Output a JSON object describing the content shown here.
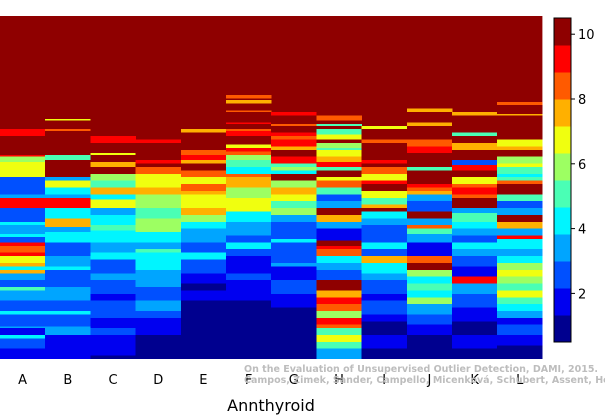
{
  "chart_data": {
    "type": "heatmap",
    "xlabel": "Annthyroid",
    "categories": [
      "A",
      "B",
      "C",
      "D",
      "E",
      "F",
      "G",
      "H",
      "I",
      "J",
      "K",
      "L"
    ],
    "colorbar": {
      "min": 0.5,
      "max": 10.5,
      "ticks": [
        "2",
        "4",
        "6",
        "8",
        "10"
      ],
      "tick_values": [
        2,
        4,
        6,
        8,
        10
      ],
      "levels": [
        "#00008F",
        "#0000F0",
        "#0050FF",
        "#00A5FF",
        "#00F5FF",
        "#4AFFB5",
        "#9DFF62",
        "#F0FF0F",
        "#FFB000",
        "#FF5A00",
        "#FF0000",
        "#8F0000"
      ]
    },
    "background_value": 11,
    "stripes": [
      [
        [
          0.33,
          10
        ],
        [
          0.35,
          11
        ],
        [
          0.405,
          10
        ],
        [
          0.41,
          6
        ],
        [
          0.425,
          7
        ],
        [
          0.47,
          2
        ],
        [
          0.52,
          3
        ],
        [
          0.53,
          10
        ],
        [
          0.56,
          2
        ],
        [
          0.6,
          4
        ],
        [
          0.61,
          3
        ],
        [
          0.635,
          4
        ],
        [
          0.645,
          2
        ],
        [
          0.66,
          10
        ],
        [
          0.67,
          9
        ],
        [
          0.69,
          10
        ],
        [
          0.7,
          7
        ],
        [
          0.72,
          8
        ],
        [
          0.73,
          4
        ],
        [
          0.74,
          8
        ],
        [
          0.75,
          3
        ],
        [
          0.77,
          2
        ],
        [
          0.79,
          5
        ],
        [
          0.8,
          3
        ],
        [
          0.83,
          2
        ],
        [
          0.86,
          4
        ],
        [
          0.87,
          2
        ],
        [
          0.905,
          3
        ],
        [
          0.91,
          1
        ],
        [
          0.93,
          4
        ],
        [
          0.94,
          2
        ],
        [
          0.97,
          1
        ]
      ],
      [
        [
          0.3,
          7
        ],
        [
          0.305,
          11
        ],
        [
          0.33,
          9
        ],
        [
          0.335,
          11
        ],
        [
          0.405,
          5
        ],
        [
          0.42,
          11
        ],
        [
          0.47,
          3
        ],
        [
          0.48,
          7
        ],
        [
          0.5,
          4
        ],
        [
          0.52,
          3
        ],
        [
          0.53,
          10
        ],
        [
          0.56,
          4
        ],
        [
          0.59,
          8
        ],
        [
          0.615,
          3
        ],
        [
          0.63,
          4
        ],
        [
          0.66,
          2
        ],
        [
          0.7,
          3
        ],
        [
          0.73,
          4
        ],
        [
          0.74,
          2
        ],
        [
          0.79,
          3
        ],
        [
          0.83,
          2
        ],
        [
          0.86,
          4
        ],
        [
          0.87,
          2
        ],
        [
          0.905,
          3
        ],
        [
          0.93,
          1
        ]
      ],
      [
        [
          0.35,
          10
        ],
        [
          0.37,
          11
        ],
        [
          0.4,
          7
        ],
        [
          0.405,
          11
        ],
        [
          0.425,
          8
        ],
        [
          0.44,
          11
        ],
        [
          0.46,
          6
        ],
        [
          0.48,
          5
        ],
        [
          0.5,
          8
        ],
        [
          0.52,
          4
        ],
        [
          0.535,
          7
        ],
        [
          0.56,
          3
        ],
        [
          0.58,
          4
        ],
        [
          0.61,
          5
        ],
        [
          0.625,
          4
        ],
        [
          0.66,
          3
        ],
        [
          0.69,
          4
        ],
        [
          0.71,
          2
        ],
        [
          0.75,
          3
        ],
        [
          0.77,
          2
        ],
        [
          0.81,
          1
        ],
        [
          0.83,
          2
        ],
        [
          0.88,
          1
        ],
        [
          0.91,
          2
        ],
        [
          0.93,
          1
        ],
        [
          0.99,
          0
        ]
      ],
      [
        [
          0.36,
          10
        ],
        [
          0.37,
          11
        ],
        [
          0.42,
          10
        ],
        [
          0.43,
          11
        ],
        [
          0.44,
          9
        ],
        [
          0.46,
          7
        ],
        [
          0.5,
          8
        ],
        [
          0.52,
          6
        ],
        [
          0.56,
          5
        ],
        [
          0.59,
          6
        ],
        [
          0.63,
          4
        ],
        [
          0.66,
          3
        ],
        [
          0.68,
          5
        ],
        [
          0.69,
          4
        ],
        [
          0.74,
          3
        ],
        [
          0.79,
          2
        ],
        [
          0.83,
          3
        ],
        [
          0.86,
          2
        ],
        [
          0.88,
          1
        ],
        [
          0.93,
          0
        ]
      ],
      [
        [
          0.33,
          8
        ],
        [
          0.34,
          11
        ],
        [
          0.39,
          9
        ],
        [
          0.405,
          10
        ],
        [
          0.42,
          8
        ],
        [
          0.43,
          11
        ],
        [
          0.45,
          9
        ],
        [
          0.47,
          7
        ],
        [
          0.49,
          9
        ],
        [
          0.51,
          8
        ],
        [
          0.52,
          7
        ],
        [
          0.56,
          8
        ],
        [
          0.58,
          6
        ],
        [
          0.6,
          4
        ],
        [
          0.62,
          3
        ],
        [
          0.64,
          3
        ],
        [
          0.66,
          2
        ],
        [
          0.69,
          4
        ],
        [
          0.71,
          2
        ],
        [
          0.75,
          1
        ],
        [
          0.78,
          0
        ],
        [
          0.8,
          1
        ],
        [
          0.83,
          0
        ]
      ],
      [
        [
          0.23,
          9
        ],
        [
          0.24,
          11
        ],
        [
          0.245,
          8
        ],
        [
          0.255,
          11
        ],
        [
          0.275,
          9
        ],
        [
          0.28,
          11
        ],
        [
          0.31,
          10
        ],
        [
          0.315,
          11
        ],
        [
          0.33,
          9
        ],
        [
          0.335,
          10
        ],
        [
          0.35,
          11
        ],
        [
          0.375,
          7
        ],
        [
          0.385,
          10
        ],
        [
          0.395,
          9
        ],
        [
          0.405,
          6
        ],
        [
          0.42,
          5
        ],
        [
          0.44,
          4
        ],
        [
          0.46,
          9
        ],
        [
          0.47,
          8
        ],
        [
          0.5,
          6
        ],
        [
          0.53,
          7
        ],
        [
          0.57,
          4
        ],
        [
          0.6,
          3
        ],
        [
          0.64,
          2
        ],
        [
          0.66,
          4
        ],
        [
          0.68,
          2
        ],
        [
          0.7,
          1
        ],
        [
          0.75,
          2
        ],
        [
          0.77,
          1
        ],
        [
          0.83,
          0
        ]
      ],
      [
        [
          0.28,
          10
        ],
        [
          0.29,
          11
        ],
        [
          0.315,
          9
        ],
        [
          0.32,
          11
        ],
        [
          0.34,
          10
        ],
        [
          0.35,
          9
        ],
        [
          0.36,
          10
        ],
        [
          0.38,
          8
        ],
        [
          0.39,
          11
        ],
        [
          0.41,
          10
        ],
        [
          0.43,
          5
        ],
        [
          0.44,
          6
        ],
        [
          0.45,
          4
        ],
        [
          0.46,
          11
        ],
        [
          0.48,
          6
        ],
        [
          0.5,
          8
        ],
        [
          0.52,
          7
        ],
        [
          0.54,
          5
        ],
        [
          0.56,
          6
        ],
        [
          0.58,
          3
        ],
        [
          0.6,
          2
        ],
        [
          0.65,
          4
        ],
        [
          0.66,
          2
        ],
        [
          0.72,
          3
        ],
        [
          0.73,
          1
        ],
        [
          0.77,
          2
        ],
        [
          0.81,
          1
        ],
        [
          0.85,
          0
        ]
      ],
      [
        [
          0.29,
          9
        ],
        [
          0.305,
          11
        ],
        [
          0.315,
          5
        ],
        [
          0.32,
          11
        ],
        [
          0.33,
          5
        ],
        [
          0.345,
          7
        ],
        [
          0.36,
          11
        ],
        [
          0.37,
          6
        ],
        [
          0.385,
          5
        ],
        [
          0.39,
          7
        ],
        [
          0.41,
          8
        ],
        [
          0.425,
          10
        ],
        [
          0.44,
          5
        ],
        [
          0.45,
          11
        ],
        [
          0.47,
          7
        ],
        [
          0.48,
          9
        ],
        [
          0.5,
          5
        ],
        [
          0.52,
          2
        ],
        [
          0.54,
          3
        ],
        [
          0.56,
          11
        ],
        [
          0.58,
          8
        ],
        [
          0.6,
          3
        ],
        [
          0.62,
          1
        ],
        [
          0.655,
          11
        ],
        [
          0.67,
          10
        ],
        [
          0.68,
          9
        ],
        [
          0.7,
          4
        ],
        [
          0.72,
          3
        ],
        [
          0.74,
          2
        ],
        [
          0.77,
          11
        ],
        [
          0.8,
          8
        ],
        [
          0.82,
          10
        ],
        [
          0.84,
          9
        ],
        [
          0.86,
          6
        ],
        [
          0.88,
          10
        ],
        [
          0.9,
          9
        ],
        [
          0.91,
          5
        ],
        [
          0.93,
          7
        ],
        [
          0.95,
          5
        ],
        [
          0.97,
          3
        ]
      ],
      [
        [
          0.32,
          7
        ],
        [
          0.33,
          11
        ],
        [
          0.36,
          9
        ],
        [
          0.37,
          11
        ],
        [
          0.42,
          10
        ],
        [
          0.43,
          11
        ],
        [
          0.44,
          9
        ],
        [
          0.46,
          7
        ],
        [
          0.48,
          10
        ],
        [
          0.49,
          11
        ],
        [
          0.51,
          7
        ],
        [
          0.53,
          5
        ],
        [
          0.55,
          8
        ],
        [
          0.56,
          11
        ],
        [
          0.57,
          4
        ],
        [
          0.59,
          3
        ],
        [
          0.61,
          2
        ],
        [
          0.66,
          4
        ],
        [
          0.68,
          2
        ],
        [
          0.7,
          8
        ],
        [
          0.72,
          4
        ],
        [
          0.75,
          3
        ],
        [
          0.77,
          2
        ],
        [
          0.81,
          1
        ],
        [
          0.83,
          2
        ],
        [
          0.87,
          1
        ],
        [
          0.89,
          0
        ],
        [
          0.93,
          1
        ],
        [
          0.97,
          0
        ]
      ],
      [
        [
          0.27,
          8
        ],
        [
          0.28,
          11
        ],
        [
          0.31,
          8
        ],
        [
          0.32,
          11
        ],
        [
          0.36,
          9
        ],
        [
          0.38,
          10
        ],
        [
          0.4,
          11
        ],
        [
          0.44,
          5
        ],
        [
          0.45,
          11
        ],
        [
          0.49,
          10
        ],
        [
          0.5,
          9
        ],
        [
          0.51,
          8
        ],
        [
          0.52,
          3
        ],
        [
          0.54,
          2
        ],
        [
          0.57,
          11
        ],
        [
          0.59,
          3
        ],
        [
          0.61,
          9
        ],
        [
          0.62,
          5
        ],
        [
          0.635,
          3
        ],
        [
          0.66,
          1
        ],
        [
          0.7,
          9
        ],
        [
          0.72,
          11
        ],
        [
          0.74,
          6
        ],
        [
          0.76,
          4
        ],
        [
          0.78,
          5
        ],
        [
          0.8,
          4
        ],
        [
          0.82,
          6
        ],
        [
          0.84,
          3
        ],
        [
          0.87,
          2
        ],
        [
          0.9,
          1
        ],
        [
          0.93,
          0
        ]
      ],
      [
        [
          0.28,
          8
        ],
        [
          0.29,
          11
        ],
        [
          0.34,
          5
        ],
        [
          0.35,
          11
        ],
        [
          0.37,
          8
        ],
        [
          0.39,
          11
        ],
        [
          0.42,
          2
        ],
        [
          0.435,
          10
        ],
        [
          0.45,
          11
        ],
        [
          0.47,
          7
        ],
        [
          0.49,
          9
        ],
        [
          0.5,
          10
        ],
        [
          0.52,
          9
        ],
        [
          0.53,
          11
        ],
        [
          0.56,
          3
        ],
        [
          0.575,
          5
        ],
        [
          0.6,
          4
        ],
        [
          0.62,
          3
        ],
        [
          0.64,
          2
        ],
        [
          0.66,
          4
        ],
        [
          0.68,
          3
        ],
        [
          0.7,
          2
        ],
        [
          0.73,
          1
        ],
        [
          0.76,
          10
        ],
        [
          0.78,
          3
        ],
        [
          0.81,
          2
        ],
        [
          0.85,
          1
        ],
        [
          0.89,
          0
        ],
        [
          0.93,
          1
        ],
        [
          0.97,
          0
        ]
      ],
      [
        [
          0.25,
          9
        ],
        [
          0.26,
          11
        ],
        [
          0.285,
          8
        ],
        [
          0.29,
          11
        ],
        [
          0.36,
          7
        ],
        [
          0.38,
          8
        ],
        [
          0.39,
          11
        ],
        [
          0.41,
          6
        ],
        [
          0.43,
          7
        ],
        [
          0.44,
          5
        ],
        [
          0.46,
          4
        ],
        [
          0.47,
          5
        ],
        [
          0.48,
          9
        ],
        [
          0.49,
          11
        ],
        [
          0.52,
          5
        ],
        [
          0.54,
          2
        ],
        [
          0.56,
          3
        ],
        [
          0.58,
          11
        ],
        [
          0.6,
          8
        ],
        [
          0.62,
          3
        ],
        [
          0.64,
          10
        ],
        [
          0.65,
          4
        ],
        [
          0.68,
          3
        ],
        [
          0.7,
          4
        ],
        [
          0.72,
          6
        ],
        [
          0.74,
          7
        ],
        [
          0.76,
          6
        ],
        [
          0.78,
          5
        ],
        [
          0.8,
          7
        ],
        [
          0.82,
          5
        ],
        [
          0.84,
          4
        ],
        [
          0.86,
          3
        ],
        [
          0.88,
          1
        ],
        [
          0.9,
          2
        ],
        [
          0.93,
          1
        ],
        [
          0.96,
          0
        ]
      ]
    ],
    "credit": [
      "On the Evaluation of Unsupervised Outlier Detection, DAMI, 2015.",
      "Campos, Zimek, Sander, Campello, Micenková, Schubert, Assent, Houle"
    ]
  }
}
